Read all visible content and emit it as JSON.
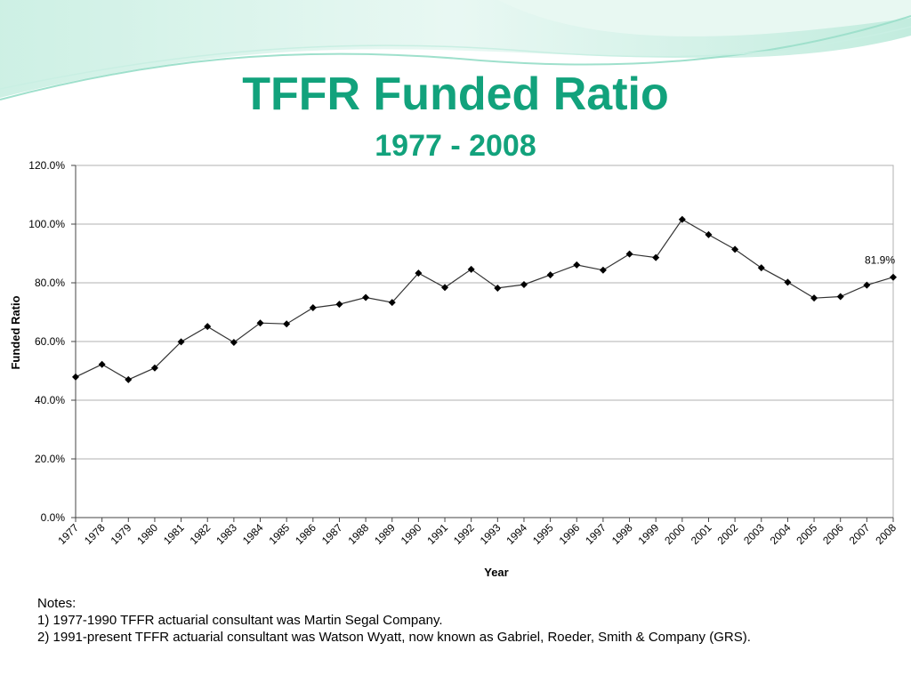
{
  "colors": {
    "title": "#12a27c",
    "line": "#333333",
    "marker": "#000000",
    "grid": "#b0b0b0",
    "wave_light": "#c9efe3",
    "wave_mid": "#9fe0cc"
  },
  "chart_data": {
    "type": "line",
    "title": "TFFR Funded Ratio",
    "subtitle": "1977 - 2008",
    "xlabel": "Year",
    "ylabel": "Funded Ratio",
    "ylim": [
      0,
      120
    ],
    "yticks": [
      "0.0%",
      "20.0%",
      "40.0%",
      "60.0%",
      "80.0%",
      "100.0%",
      "120.0%"
    ],
    "grid": true,
    "categories": [
      "1977",
      "1978",
      "1979",
      "1980",
      "1981",
      "1982",
      "1983",
      "1984",
      "1985",
      "1986",
      "1987",
      "1988",
      "1989",
      "1990",
      "1991",
      "1992",
      "1993",
      "1994",
      "1995",
      "1996",
      "1997",
      "1998",
      "1999",
      "2000",
      "2001",
      "2002",
      "2003",
      "2004",
      "2005",
      "2006",
      "2007",
      "2008"
    ],
    "series": [
      {
        "values": [
          47.9,
          52.2,
          47.0,
          51.0,
          59.9,
          65.1,
          59.7,
          66.3,
          66.0,
          71.5,
          72.7,
          75.0,
          73.3,
          83.3,
          78.4,
          84.6,
          78.2,
          79.4,
          82.7,
          86.1,
          84.3,
          89.8,
          88.6,
          101.6,
          96.4,
          91.4,
          85.1,
          80.2,
          74.8,
          75.3,
          79.2,
          81.9
        ]
      }
    ],
    "annotations": [
      {
        "text": "81.9%",
        "category": "2008"
      }
    ]
  },
  "notes": {
    "heading": "Notes:",
    "items": [
      "1) 1977-1990 TFFR actuarial consultant was Martin Segal Company.",
      "2) 1991-present TFFR actuarial consultant was Watson Wyatt, now known as Gabriel, Roeder, Smith & Company (GRS)."
    ]
  }
}
